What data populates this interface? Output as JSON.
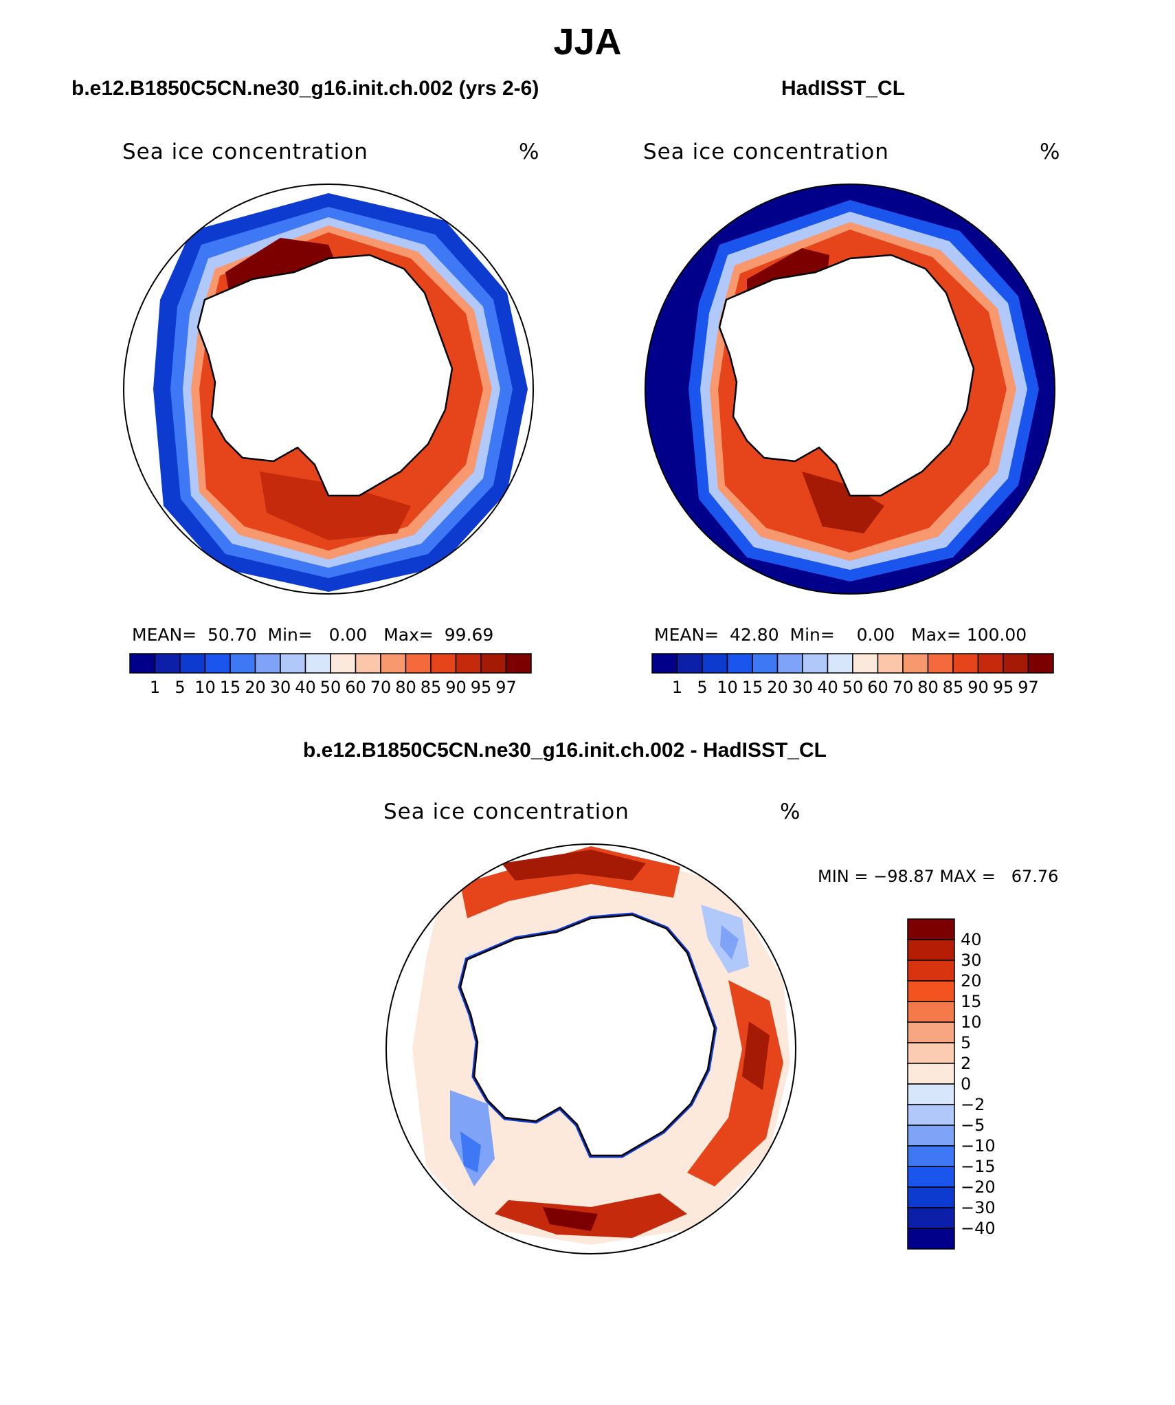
{
  "season_title": "JJA",
  "panels": [
    {
      "case_title": "b.e12.B1850C5CN.ne30_g16.init.ch.002 (yrs 2-6)",
      "variable_label": "Sea ice concentration",
      "units": "%",
      "stats": {
        "mean_label": "MEAN=",
        "mean": "50.70",
        "min_label": "Min=",
        "min": "0.00",
        "max_label": "Max=",
        "max": "99.69"
      }
    },
    {
      "case_title": "HadISST_CL",
      "variable_label": "Sea ice concentration",
      "units": "%",
      "stats": {
        "mean_label": "MEAN=",
        "mean": "42.80",
        "min_label": "Min=",
        "min": "0.00",
        "max_label": "Max=",
        "max": "100.00"
      }
    }
  ],
  "diff_panel": {
    "title": "b.e12.B1850C5CN.ne30_g16.init.ch.002 - HadISST_CL",
    "variable_label": "Sea ice concentration",
    "units": "%",
    "minmax_text": "MIN = −98.87 MAX =   67.76"
  },
  "colorbar_abs": {
    "levels": [
      "1",
      "5",
      "10",
      "15",
      "20",
      "30",
      "40",
      "50",
      "60",
      "70",
      "80",
      "85",
      "90",
      "95",
      "97"
    ],
    "colors": [
      "#00008b",
      "#0b1fa8",
      "#0d3bd0",
      "#1a55ee",
      "#3f78f5",
      "#7fa3f7",
      "#b0c8fa",
      "#d8e6fb",
      "#fde9dc",
      "#fbc6aa",
      "#f8986f",
      "#f56a3d",
      "#e6451b",
      "#c42a0b",
      "#a51a04",
      "#7c0000"
    ]
  },
  "colorbar_diff": {
    "levels": [
      "40",
      "30",
      "20",
      "15",
      "10",
      "5",
      "2",
      "0",
      "−2",
      "−5",
      "−10",
      "−15",
      "−20",
      "−30",
      "−40"
    ],
    "colors": [
      "#7c0000",
      "#b51d05",
      "#d93410",
      "#f2531f",
      "#f47a4a",
      "#f8a681",
      "#fbcbb2",
      "#fde9dc",
      "#d8e6fb",
      "#b0c8fa",
      "#7fa3f7",
      "#3f78f5",
      "#1a55ee",
      "#0d3bd0",
      "#0b1fa8",
      "#00008b"
    ]
  },
  "map_colors": {
    "ocean_open": "#00008b",
    "land": "#ffffff",
    "coastline": "#000000"
  }
}
